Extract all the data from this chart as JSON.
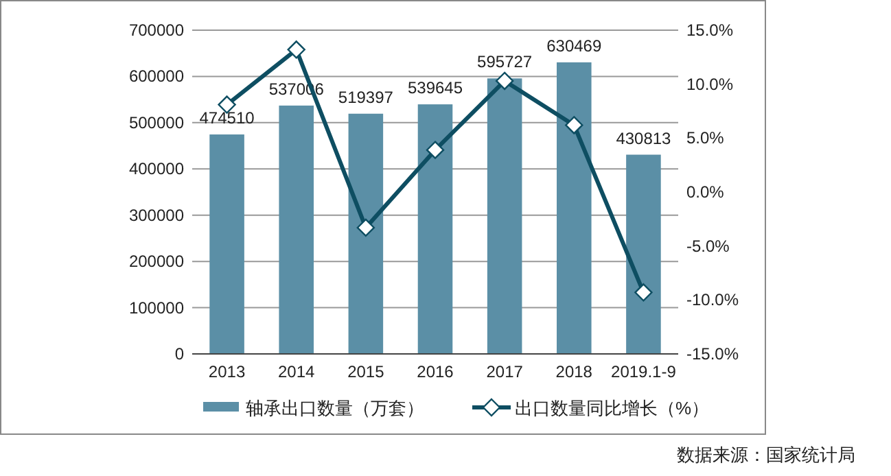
{
  "chart_data": {
    "type": "bar",
    "categories": [
      "2013",
      "2014",
      "2015",
      "2016",
      "2017",
      "2018",
      "2019.1-9"
    ],
    "series": [
      {
        "name": "轴承出口数量（万套）",
        "color": "#5b8fa6",
        "values": [
          474510,
          537006,
          519397,
          539645,
          595727,
          630469,
          430813
        ],
        "value_labels": [
          "474510",
          "537006",
          "519397",
          "539645",
          "595727",
          "630469",
          "430813"
        ]
      },
      {
        "name": "出口数量同比增长（%）",
        "type": "line",
        "axis": "y2",
        "color": "#0e4e62",
        "marker": "diamond",
        "values": [
          8.1,
          13.2,
          -3.3,
          3.9,
          10.3,
          6.2,
          -9.3
        ]
      }
    ],
    "ylim": [
      0,
      700000
    ],
    "yticks": [
      0,
      100000,
      200000,
      300000,
      400000,
      500000,
      600000,
      700000
    ],
    "y2lim": [
      -15,
      15
    ],
    "y2ticks": [
      {
        "value": -15,
        "label": "-15.0%"
      },
      {
        "value": -10,
        "label": "-10.0%"
      },
      {
        "value": -5,
        "label": "-5.0%"
      },
      {
        "value": 0,
        "label": "0.0%"
      },
      {
        "value": 5,
        "label": "5.0%"
      },
      {
        "value": 10,
        "label": "10.0%"
      },
      {
        "value": 15,
        "label": "15.0%"
      }
    ],
    "grid": "y",
    "legend": "bottom",
    "annotations": [
      "数据来源：国家统计局"
    ]
  }
}
